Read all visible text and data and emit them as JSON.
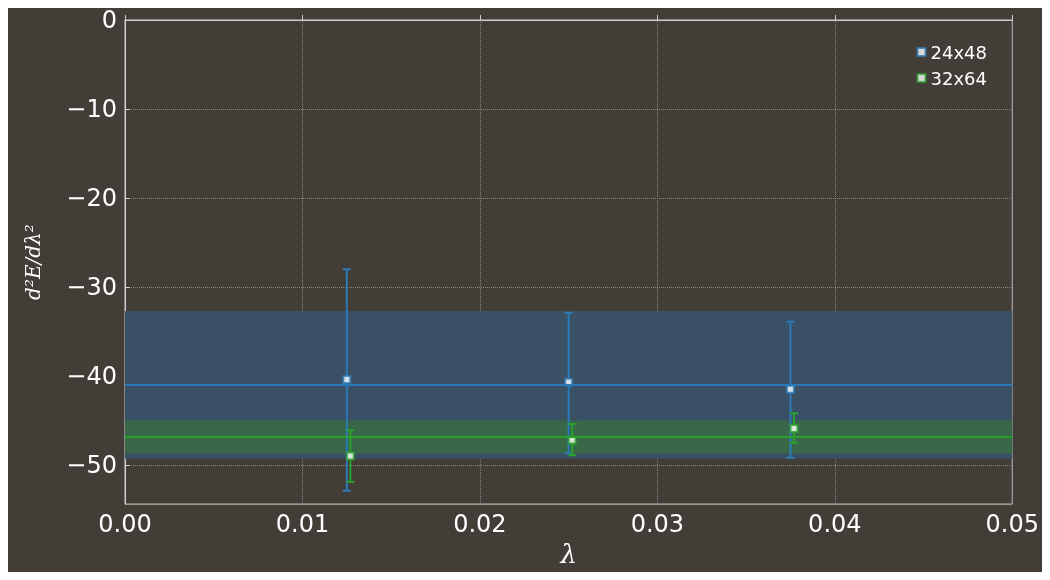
{
  "chart_data": {
    "type": "scatter",
    "xlabel": "λ",
    "ylabel": "d²E/dλ²",
    "xlim": [
      0,
      0.05
    ],
    "xticks": [
      {
        "value": 0,
        "label": "0.00"
      },
      {
        "value": 0.01,
        "label": "0.01"
      },
      {
        "value": 0.02,
        "label": "0.02"
      },
      {
        "value": 0.03,
        "label": "0.03"
      },
      {
        "value": 0.04,
        "label": "0.04"
      },
      {
        "value": 0.05,
        "label": "0.05"
      }
    ],
    "ylim": [
      -54.4,
      0
    ],
    "yticks": [
      0,
      -10,
      -20,
      -30,
      -40,
      -50
    ],
    "series": [
      {
        "name": "24x48",
        "color": "#2a7ab8",
        "x": [
          0.0125,
          0.025,
          0.0375
        ],
        "values": [
          -40.4,
          -40.7,
          -41.5
        ],
        "errors": [
          [
            -52.9,
            -28.0
          ],
          [
            -48.7,
            -32.9
          ],
          [
            -49.2,
            -33.9
          ]
        ]
      },
      {
        "name": "32x64",
        "color": "#2ca02c",
        "x": [
          0.0127,
          0.0252,
          0.0377
        ],
        "values": [
          -49.0,
          -47.2,
          -45.9
        ],
        "errors": [
          [
            -51.9,
            -46.1
          ],
          [
            -48.9,
            -45.4
          ],
          [
            -47.5,
            -44.2
          ]
        ]
      }
    ],
    "bands": [
      {
        "axis": "y",
        "from": -49.3,
        "to": -32.7,
        "color": "#3a5064"
      },
      {
        "axis": "y",
        "from": -48.7,
        "to": -45.0,
        "color": "#386848"
      }
    ],
    "ref_lines": [
      {
        "axis": "y",
        "value": -41.0,
        "color": "#2a7ab8"
      },
      {
        "axis": "y",
        "value": -46.8,
        "color": "#2ca02c"
      }
    ],
    "grid": true,
    "legend": "top right",
    "marker": "square"
  }
}
